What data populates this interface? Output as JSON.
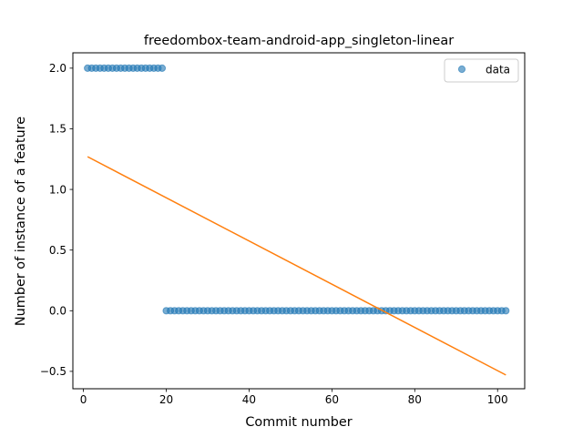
{
  "chart_data": {
    "type": "scatter",
    "title": "freedombox-team-android-app_singleton-linear",
    "xlabel": "Commit number",
    "ylabel": "Number of instance of a feature",
    "xlim": [
      -2.55,
      106.55
    ],
    "ylim": [
      -0.6434,
      2.1266
    ],
    "xticks": [
      0,
      20,
      40,
      60,
      80,
      100
    ],
    "yticks": [
      -0.5,
      0.0,
      0.5,
      1.0,
      1.5,
      2.0
    ],
    "ytick_labels": [
      "−0.5",
      "0.0",
      "0.5",
      "1.0",
      "1.5",
      "2.0"
    ],
    "legend": {
      "position": "top-right",
      "entries": [
        "data"
      ]
    },
    "series": [
      {
        "name": "data",
        "kind": "scatter",
        "color": "#1f77b4",
        "x": [
          1,
          2,
          3,
          4,
          5,
          6,
          7,
          8,
          9,
          10,
          11,
          12,
          13,
          14,
          15,
          16,
          17,
          18,
          19,
          20,
          21,
          22,
          23,
          24,
          25,
          26,
          27,
          28,
          29,
          30,
          31,
          32,
          33,
          34,
          35,
          36,
          37,
          38,
          39,
          40,
          41,
          42,
          43,
          44,
          45,
          46,
          47,
          48,
          49,
          50,
          51,
          52,
          53,
          54,
          55,
          56,
          57,
          58,
          59,
          60,
          61,
          62,
          63,
          64,
          65,
          66,
          67,
          68,
          69,
          70,
          71,
          72,
          73,
          74,
          75,
          76,
          77,
          78,
          79,
          80,
          81,
          82,
          83,
          84,
          85,
          86,
          87,
          88,
          89,
          90,
          91,
          92,
          93,
          94,
          95,
          96,
          97,
          98,
          99,
          100,
          101,
          102
        ],
        "y": [
          2,
          2,
          2,
          2,
          2,
          2,
          2,
          2,
          2,
          2,
          2,
          2,
          2,
          2,
          2,
          2,
          2,
          2,
          2,
          0,
          0,
          0,
          0,
          0,
          0,
          0,
          0,
          0,
          0,
          0,
          0,
          0,
          0,
          0,
          0,
          0,
          0,
          0,
          0,
          0,
          0,
          0,
          0,
          0,
          0,
          0,
          0,
          0,
          0,
          0,
          0,
          0,
          0,
          0,
          0,
          0,
          0,
          0,
          0,
          0,
          0,
          0,
          0,
          0,
          0,
          0,
          0,
          0,
          0,
          0,
          0,
          0,
          0,
          0,
          0,
          0,
          0,
          0,
          0,
          0,
          0,
          0,
          0,
          0,
          0,
          0,
          0,
          0,
          0,
          0,
          0,
          0,
          0,
          0,
          0,
          0,
          0,
          0,
          0,
          0,
          0,
          0
        ]
      },
      {
        "kind": "line",
        "color": "#ff7f0e",
        "x": [
          1,
          102
        ],
        "y": [
          1.27,
          -0.53
        ]
      }
    ]
  }
}
